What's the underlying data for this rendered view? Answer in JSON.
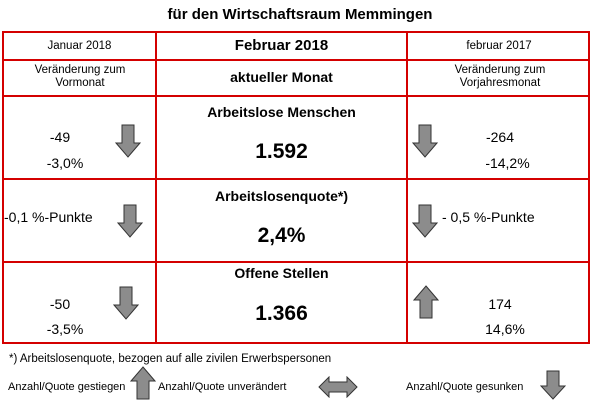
{
  "title": "für den Wirtschaftsraum Memmingen",
  "header": {
    "left_month": "Januar 2018",
    "center_month": "Februar 2018",
    "right_month": "februar 2017",
    "left_sub": "Veränderung zum Vormonat",
    "center_sub": "aktueller Monat",
    "right_sub": "Veränderung zum Vorjahresmonat"
  },
  "rows": [
    {
      "label": "Arbeitslose Menschen",
      "value": "1.592",
      "left_abs": "-49",
      "left_pct": "-3,0%",
      "left_arrow": "down",
      "right_abs": "-264",
      "right_pct": "-14,2%",
      "right_arrow": "down"
    },
    {
      "label": "Arbeitslosenquote*)",
      "value": "2,4%",
      "left_text": "-0,1 %-Punkte",
      "left_arrow": "down",
      "right_text": "- 0,5 %-Punkte",
      "right_arrow": "down"
    },
    {
      "label": "Offene Stellen",
      "value": "1.366",
      "left_abs": "-50",
      "left_pct": "-3,5%",
      "left_arrow": "down",
      "right_abs": "174",
      "right_pct": "14,6%",
      "right_arrow": "up"
    }
  ],
  "footnote": "*) Arbeitslosenquote, bezogen auf alle zivilen Erwerbspersonen",
  "legend": {
    "up": "Anzahl/Quote gestiegen",
    "same": "Anzahl/Quote unverändert",
    "down": "Anzahl/Quote gesunken"
  },
  "colors": {
    "border": "#d40000",
    "arrow": "#8c8c8c"
  }
}
